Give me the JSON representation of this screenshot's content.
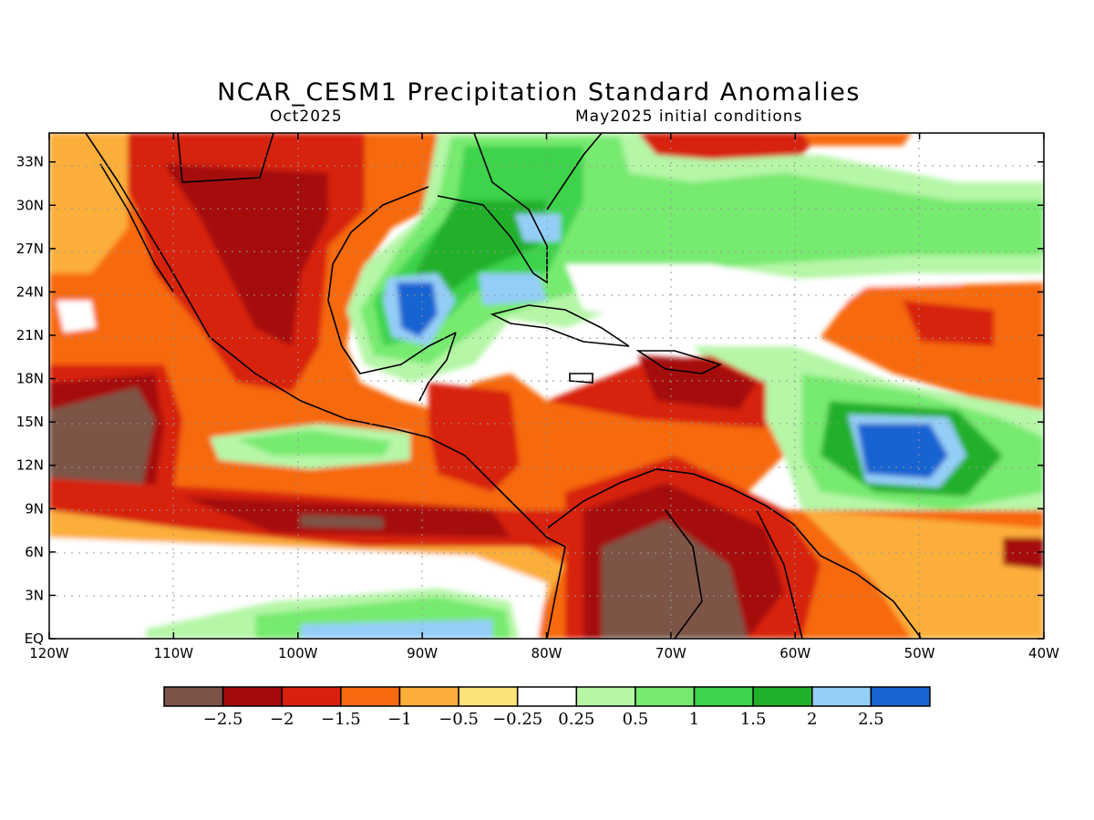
{
  "title": "NCAR_CESM1 Precipitation Standard Anomalies",
  "subtitle_left": "Oct2025",
  "subtitle_right": "May2025 initial conditions",
  "lat_ticks": [
    "EQ",
    "3N",
    "6N",
    "9N",
    "12N",
    "15N",
    "18N",
    "21N",
    "24N",
    "27N",
    "30N",
    "33N"
  ],
  "lon_ticks": [
    "120W",
    "110W",
    "100W",
    "90W",
    "80W",
    "70W",
    "60W",
    "50W",
    "40W"
  ],
  "colorbar": {
    "colors": [
      "#7b5447",
      "#a50a0a",
      "#d7200e",
      "#f7690f",
      "#fcae3a",
      "#fde27a",
      "#ffffff",
      "#b6f6a7",
      "#77ea6f",
      "#3ed34b",
      "#21b029",
      "#94cef7",
      "#1864d1"
    ],
    "labels": [
      "-2.5",
      "-2",
      "-1.5",
      "-1",
      "-0.5",
      "-0.25",
      "0.25",
      "0.5",
      "1",
      "1.5",
      "2",
      "2.5"
    ]
  }
}
